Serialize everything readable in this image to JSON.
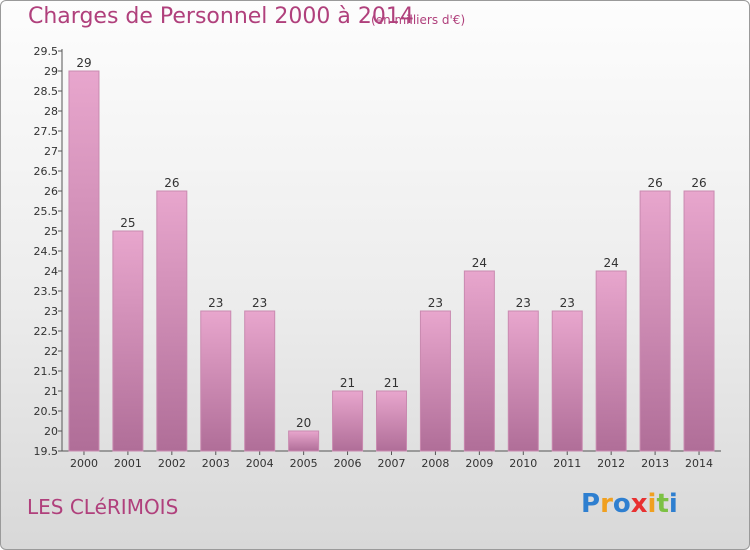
{
  "header": {
    "title": "Charges de Personnel 2000 à 2014",
    "unit": "(en milliers d'€)"
  },
  "footer": {
    "town": "LES CLéRIMOIS",
    "logo": "Proxiti"
  },
  "colors": {
    "title": "#b0407c",
    "bar_top": "#e8a6cd",
    "bar_bottom": "#b06e98",
    "bar_edge": "#c98ab0",
    "logo": [
      "#2e7fd0",
      "#f0a020",
      "#2e7fd0",
      "#e83030",
      "#f0a020",
      "#7cc143",
      "#2e7fd0"
    ]
  },
  "chart_data": {
    "type": "bar",
    "categories": [
      "2000",
      "2001",
      "2002",
      "2003",
      "2004",
      "2005",
      "2006",
      "2007",
      "2008",
      "2009",
      "2010",
      "2011",
      "2012",
      "2013",
      "2014"
    ],
    "values": [
      29,
      25,
      26,
      23,
      23,
      20,
      21,
      21,
      23,
      24,
      23,
      23,
      24,
      26,
      26
    ],
    "data_labels": [
      "29",
      "25",
      "26",
      "23",
      "23",
      "20",
      "21",
      "21",
      "23",
      "24",
      "23",
      "23",
      "24",
      "26",
      "26"
    ],
    "title": "Charges de Personnel 2000 à 2014",
    "xlabel": "",
    "ylabel": "",
    "ylim": [
      19.5,
      29.5
    ],
    "yticks": [
      "19.5",
      "20",
      "20.5",
      "21",
      "21.5",
      "22",
      "22.5",
      "23",
      "23.5",
      "24",
      "24.5",
      "25",
      "25.5",
      "26",
      "26.5",
      "27",
      "27.5",
      "28",
      "28.5",
      "29",
      "29.5"
    ],
    "grid": false,
    "legend": "none"
  }
}
